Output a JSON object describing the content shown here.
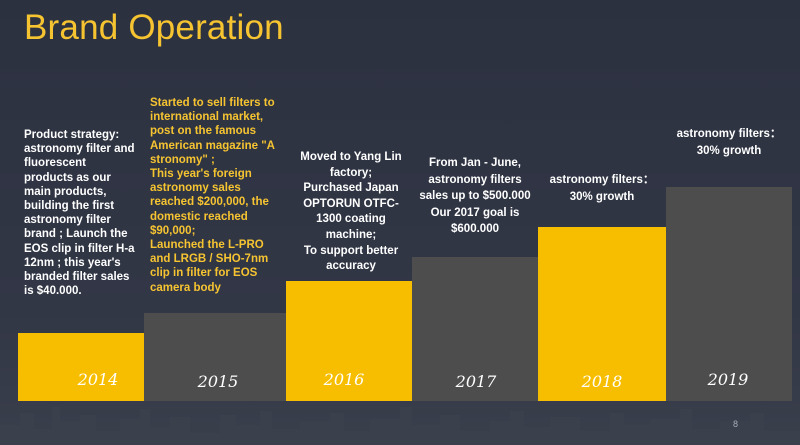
{
  "title": "Brand Operation",
  "page_number": "8",
  "colors": {
    "accent": "#f6c431",
    "bar_yellow": "#f7be00",
    "bar_gray": "#4d4d4d",
    "background": "#2f3444"
  },
  "timeline": [
    {
      "year": "2014",
      "color": "yellow",
      "level": 1,
      "lines": [
        "Product strategy:",
        "astronomy filter and",
        "fluorescent",
        "products  as our",
        "main products,",
        "building the first",
        "astronomy filter",
        "brand ; Launch the",
        "EOS clip in filter H-a",
        "12nm ; this year's",
        "branded filter sales",
        "is $40.000."
      ]
    },
    {
      "year": "2015",
      "color": "gray",
      "level": 2,
      "lines": [
        "Started to sell filters to",
        "international market,",
        "post on the famous",
        "American magazine \"A",
        "stronomy\" ;",
        "This year's foreign",
        "astronomy sales",
        "reached $200,000, the",
        "domestic reached",
        "$90,000;",
        "Launched the  L-PRO",
        "and LRGB / SHO-7nm",
        "clip in filter for EOS",
        "camera body"
      ]
    },
    {
      "year": "2016",
      "color": "yellow",
      "level": 3,
      "lines": [
        "Moved to Yang Lin",
        "factory;",
        "Purchased Japan",
        "OPTORUN OTFC-",
        "1300 coating",
        "machine;",
        "To support better",
        "accuracy"
      ]
    },
    {
      "year": "2017",
      "color": "gray",
      "level": 4,
      "lines": [
        "From Jan - June,",
        "astronomy filters",
        "sales up to $500.000",
        "Our 2017 goal is",
        "$600.000"
      ]
    },
    {
      "year": "2018",
      "color": "yellow",
      "level": 5,
      "lines": [
        "astronomy filters：",
        "30% growth"
      ]
    },
    {
      "year": "2019",
      "color": "gray",
      "level": 6,
      "lines": [
        "astronomy filters：",
        "30% growth"
      ]
    }
  ]
}
